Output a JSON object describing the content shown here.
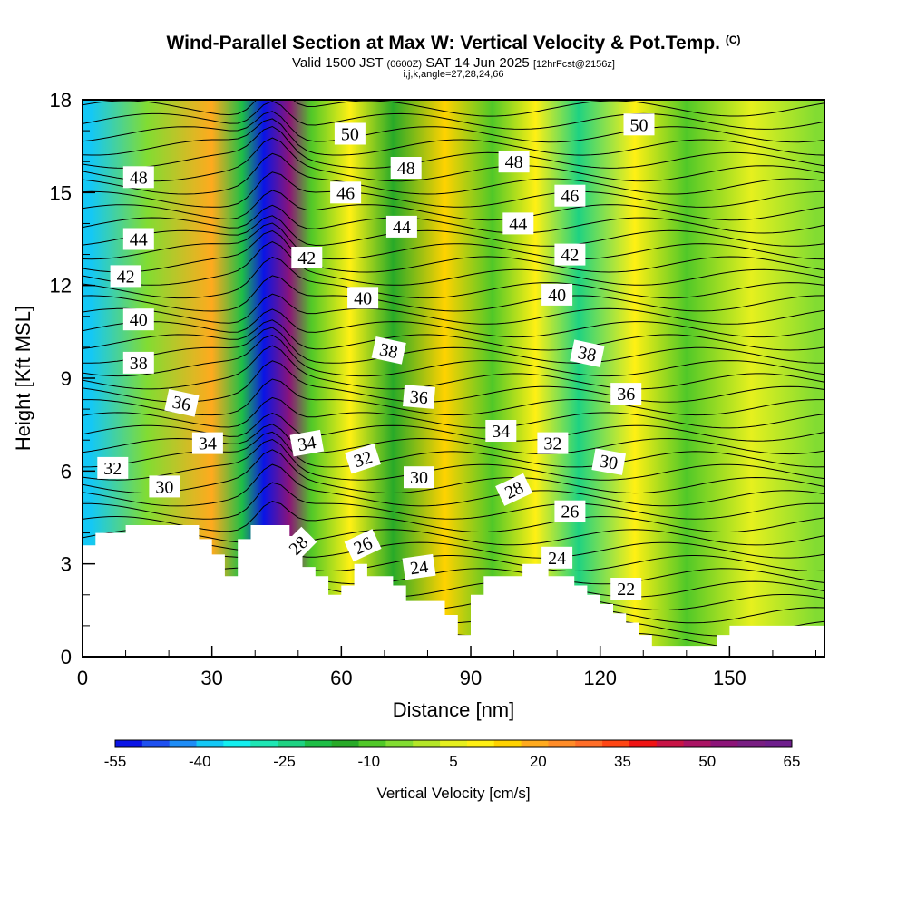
{
  "title": "Wind-Parallel Section at Max W: Vertical Velocity & Pot.Temp.",
  "copyright": "(C)",
  "subtitle_main": "Valid 1500 JST",
  "subtitle_z": "(0600Z)",
  "subtitle_date": "SAT 14 Jun 2025",
  "subtitle_fcst": "[12hrFcst@2156z]",
  "subtitle_ijk": "i,j,k,angle=27,28,24,66",
  "chart_data": {
    "type": "heatmap",
    "xlabel": "Distance [nm]",
    "ylabel": "Height [Kft MSL]",
    "xlim": [
      0,
      172
    ],
    "ylim": [
      0,
      18
    ],
    "xticks": [
      "0",
      "30",
      "60",
      "90",
      "120",
      "150"
    ],
    "yticks": [
      "0",
      "3",
      "6",
      "9",
      "12",
      "15",
      "18"
    ],
    "grid": false,
    "colorbar": {
      "title": "Vertical Velocity [cm/s]",
      "tick_labels": [
        "-55",
        "-40",
        "-25",
        "-10",
        "5",
        "20",
        "35",
        "50",
        "65"
      ],
      "colors": [
        "#0a14e6",
        "#1e50f0",
        "#1e8cf5",
        "#14c8f5",
        "#14f0f0",
        "#1ee6b4",
        "#1ed282",
        "#1ebe46",
        "#28aa28",
        "#50c828",
        "#82dc32",
        "#b4e628",
        "#e6f01e",
        "#fff014",
        "#ffd200",
        "#ffaa1e",
        "#ff8c28",
        "#ff6e28",
        "#ff4614",
        "#f01414",
        "#c81446",
        "#aa1464",
        "#8c1478",
        "#781e82",
        "#6e1e8c"
      ]
    },
    "vertical_velocity_bands": [
      {
        "x": 2,
        "w": -40
      },
      {
        "x": 15,
        "w": -5
      },
      {
        "x": 30,
        "w": 20
      },
      {
        "x": 37,
        "w": -20
      },
      {
        "x": 42,
        "w": -55
      },
      {
        "x": 48,
        "w": 55
      },
      {
        "x": 53,
        "w": -10
      },
      {
        "x": 62,
        "w": 10
      },
      {
        "x": 72,
        "w": -15
      },
      {
        "x": 84,
        "w": 15
      },
      {
        "x": 95,
        "w": -10
      },
      {
        "x": 105,
        "w": 10
      },
      {
        "x": 115,
        "w": -25
      },
      {
        "x": 128,
        "w": 10
      },
      {
        "x": 140,
        "w": -10
      },
      {
        "x": 155,
        "w": 5
      },
      {
        "x": 170,
        "w": -5
      }
    ],
    "terrain": {
      "x": [
        0,
        3,
        3,
        10,
        10,
        27,
        27,
        30,
        30,
        33,
        33,
        36,
        36,
        39,
        39,
        48,
        48,
        51,
        51,
        54,
        54,
        57,
        57,
        60,
        60,
        63,
        63,
        66,
        66,
        72,
        72,
        75,
        75,
        81,
        81,
        84,
        84,
        87,
        87,
        90,
        90,
        93,
        93,
        96,
        96,
        102,
        102,
        108,
        108,
        114,
        114,
        117,
        117,
        120,
        120,
        123,
        123,
        126,
        126,
        129,
        129,
        132,
        132,
        138,
        138,
        141,
        141,
        147,
        147,
        150,
        150,
        156,
        156,
        160,
        160,
        164,
        164,
        168,
        168,
        172
      ],
      "y": [
        3.6,
        3.6,
        4.0,
        4.0,
        4.25,
        4.25,
        3.8,
        3.8,
        3.3,
        3.3,
        2.6,
        2.6,
        3.8,
        3.8,
        4.25,
        4.25,
        3.9,
        3.9,
        2.9,
        2.9,
        2.6,
        2.6,
        2.0,
        2.0,
        2.3,
        2.3,
        3.0,
        3.0,
        2.6,
        2.6,
        2.3,
        2.3,
        1.8,
        1.8,
        1.8,
        1.8,
        1.35,
        1.35,
        0.7,
        0.7,
        2.0,
        2.0,
        2.6,
        2.6,
        2.6,
        2.6,
        3.0,
        3.0,
        2.6,
        2.6,
        2.3,
        2.3,
        2.0,
        2.0,
        1.7,
        1.7,
        1.4,
        1.4,
        1.1,
        1.1,
        0.7,
        0.7,
        0.35,
        0.35,
        0.35,
        0.35,
        0.35,
        0.35,
        0.7,
        0.7,
        1.0,
        1.0,
        1.0,
        1.0,
        1.0,
        1.0,
        1.0,
        1.0,
        1.0,
        1.0
      ]
    },
    "theta_contour_labels": [
      {
        "text": "50",
        "x": 62,
        "y": 16.9,
        "rot": 0
      },
      {
        "text": "50",
        "x": 129,
        "y": 17.2,
        "rot": 0
      },
      {
        "text": "48",
        "x": 13,
        "y": 15.5,
        "rot": 0
      },
      {
        "text": "48",
        "x": 75,
        "y": 15.8,
        "rot": 0
      },
      {
        "text": "48",
        "x": 100,
        "y": 16.0,
        "rot": 0
      },
      {
        "text": "46",
        "x": 61,
        "y": 15.0,
        "rot": 0
      },
      {
        "text": "46",
        "x": 113,
        "y": 14.9,
        "rot": 0
      },
      {
        "text": "44",
        "x": 13,
        "y": 13.5,
        "rot": 0
      },
      {
        "text": "44",
        "x": 74,
        "y": 13.9,
        "rot": 0
      },
      {
        "text": "44",
        "x": 101,
        "y": 14.0,
        "rot": 0
      },
      {
        "text": "42",
        "x": 10,
        "y": 12.3,
        "rot": 0
      },
      {
        "text": "42",
        "x": 52,
        "y": 12.9,
        "rot": 0
      },
      {
        "text": "42",
        "x": 113,
        "y": 13.0,
        "rot": 0
      },
      {
        "text": "40",
        "x": 13,
        "y": 10.9,
        "rot": 0
      },
      {
        "text": "40",
        "x": 65,
        "y": 11.6,
        "rot": 0
      },
      {
        "text": "40",
        "x": 110,
        "y": 11.7,
        "rot": 0
      },
      {
        "text": "38",
        "x": 13,
        "y": 9.5,
        "rot": 0
      },
      {
        "text": "38",
        "x": 71,
        "y": 9.9,
        "rot": 12
      },
      {
        "text": "38",
        "x": 117,
        "y": 9.8,
        "rot": 12
      },
      {
        "text": "36",
        "x": 23,
        "y": 8.2,
        "rot": 12
      },
      {
        "text": "36",
        "x": 78,
        "y": 8.4,
        "rot": 5
      },
      {
        "text": "36",
        "x": 126,
        "y": 8.5,
        "rot": 0
      },
      {
        "text": "34",
        "x": 29,
        "y": 6.9,
        "rot": 0
      },
      {
        "text": "34",
        "x": 52,
        "y": 6.9,
        "rot": -10
      },
      {
        "text": "34",
        "x": 97,
        "y": 7.3,
        "rot": 0
      },
      {
        "text": "32",
        "x": 7,
        "y": 6.1,
        "rot": 0
      },
      {
        "text": "32",
        "x": 65,
        "y": 6.4,
        "rot": -18
      },
      {
        "text": "32",
        "x": 109,
        "y": 6.9,
        "rot": 0
      },
      {
        "text": "30",
        "x": 19,
        "y": 5.5,
        "rot": 0
      },
      {
        "text": "30",
        "x": 78,
        "y": 5.8,
        "rot": 0
      },
      {
        "text": "30",
        "x": 122,
        "y": 6.3,
        "rot": 10
      },
      {
        "text": "28",
        "x": 50,
        "y": 3.6,
        "rot": -45
      },
      {
        "text": "28",
        "x": 100,
        "y": 5.4,
        "rot": -25
      },
      {
        "text": "26",
        "x": 65,
        "y": 3.6,
        "rot": -25
      },
      {
        "text": "26",
        "x": 113,
        "y": 4.7,
        "rot": 0
      },
      {
        "text": "24",
        "x": 78,
        "y": 2.9,
        "rot": -8
      },
      {
        "text": "24",
        "x": 110,
        "y": 3.2,
        "rot": 0
      },
      {
        "text": "22",
        "x": 126,
        "y": 2.2,
        "rot": 0
      }
    ]
  }
}
